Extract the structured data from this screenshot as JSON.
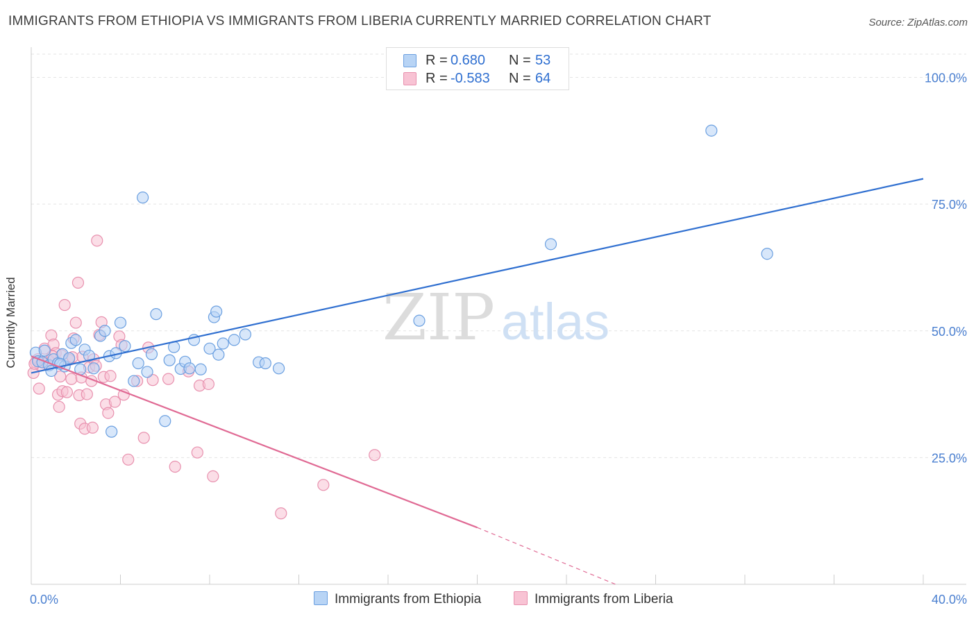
{
  "title": "IMMIGRANTS FROM ETHIOPIA VS IMMIGRANTS FROM LIBERIA CURRENTLY MARRIED CORRELATION CHART",
  "source": "Source: ZipAtlas.com",
  "watermark": {
    "zip": "ZIP",
    "atlas": "atlas"
  },
  "legend": {
    "r_label": "R =",
    "n_label": "N =",
    "ethiopia": {
      "r": "0.680",
      "n": "53"
    },
    "liberia": {
      "r": "-0.583",
      "n": "64"
    }
  },
  "colors": {
    "ethiopia_fill": "#b8d4f5",
    "ethiopia_stroke": "#6a9fe0",
    "ethiopia_line": "#2f6fd0",
    "liberia_fill": "#f8c3d4",
    "liberia_stroke": "#e890ae",
    "liberia_line": "#e06a94",
    "tick_label": "#4a7fd0",
    "grid": "#e3e3e3"
  },
  "chart_data": {
    "type": "scatter",
    "title": "IMMIGRANTS FROM ETHIOPIA VS IMMIGRANTS FROM LIBERIA CURRENTLY MARRIED CORRELATION CHART",
    "xlabel": "",
    "ylabel": "Currently Married",
    "xlim": [
      0,
      40
    ],
    "ylim": [
      0,
      105
    ],
    "x_tick_labels": [
      "0.0%",
      "40.0%"
    ],
    "y_ticks": [
      25,
      50,
      75,
      100
    ],
    "y_tick_labels": [
      "25.0%",
      "50.0%",
      "75.0%",
      "100.0%"
    ],
    "legend_position": "top-center",
    "series": [
      {
        "name": "Immigrants from Ethiopia",
        "r": 0.68,
        "n": 53,
        "trend": {
          "x0": 0,
          "y0": 41.7,
          "x1": 40,
          "y1": 80.0
        },
        "points": [
          [
            0.2,
            45.7
          ],
          [
            0.3,
            44.0
          ],
          [
            0.5,
            43.8
          ],
          [
            0.6,
            46.1
          ],
          [
            0.8,
            43.2
          ],
          [
            0.9,
            42.1
          ],
          [
            1.0,
            44.4
          ],
          [
            1.2,
            43.6
          ],
          [
            1.4,
            45.4
          ],
          [
            1.5,
            43.0
          ],
          [
            1.7,
            44.6
          ],
          [
            1.8,
            47.6
          ],
          [
            2.0,
            48.2
          ],
          [
            2.2,
            42.4
          ],
          [
            2.4,
            46.3
          ],
          [
            2.6,
            45.1
          ],
          [
            2.8,
            42.6
          ],
          [
            3.1,
            49.0
          ],
          [
            3.3,
            50.0
          ],
          [
            3.5,
            45.0
          ],
          [
            3.8,
            45.6
          ],
          [
            4.0,
            51.6
          ],
          [
            4.2,
            47.0
          ],
          [
            4.6,
            40.1
          ],
          [
            4.8,
            43.6
          ],
          [
            5.2,
            41.9
          ],
          [
            5.4,
            45.4
          ],
          [
            5.6,
            53.3
          ],
          [
            6.0,
            32.2
          ],
          [
            6.2,
            44.2
          ],
          [
            6.4,
            46.8
          ],
          [
            6.7,
            42.5
          ],
          [
            6.9,
            43.9
          ],
          [
            7.1,
            42.6
          ],
          [
            7.3,
            48.2
          ],
          [
            7.6,
            42.4
          ],
          [
            8.0,
            46.5
          ],
          [
            8.2,
            52.7
          ],
          [
            8.4,
            45.3
          ],
          [
            8.6,
            47.5
          ],
          [
            9.1,
            48.2
          ],
          [
            9.6,
            49.3
          ],
          [
            10.2,
            43.8
          ],
          [
            10.5,
            43.6
          ],
          [
            11.1,
            42.6
          ],
          [
            3.6,
            30.1
          ],
          [
            5.0,
            76.3
          ],
          [
            8.3,
            53.8
          ],
          [
            17.4,
            52.0
          ],
          [
            23.3,
            67.1
          ],
          [
            30.5,
            89.5
          ],
          [
            33.0,
            65.2
          ],
          [
            1.3,
            43.5
          ]
        ]
      },
      {
        "name": "Immigrants from Liberia",
        "r": -0.583,
        "n": 64,
        "trend": {
          "x0": 0,
          "y0": 45.0,
          "x1": 20.0,
          "y1": 11.2
        },
        "trend_dashed": {
          "x0": 20.0,
          "y0": 11.2,
          "x1": 26.2,
          "y1": 0.0
        },
        "points": [
          [
            0.1,
            41.7
          ],
          [
            0.2,
            43.8
          ],
          [
            0.3,
            44.4
          ],
          [
            0.35,
            38.6
          ],
          [
            0.4,
            43.2
          ],
          [
            0.5,
            43.8
          ],
          [
            0.6,
            46.5
          ],
          [
            0.7,
            43.7
          ],
          [
            0.8,
            44.2
          ],
          [
            0.9,
            49.1
          ],
          [
            1.0,
            47.3
          ],
          [
            1.1,
            45.6
          ],
          [
            1.2,
            37.4
          ],
          [
            1.25,
            35.0
          ],
          [
            1.3,
            41.0
          ],
          [
            1.35,
            45.2
          ],
          [
            1.4,
            38.1
          ],
          [
            1.5,
            55.1
          ],
          [
            1.6,
            37.9
          ],
          [
            1.7,
            44.3
          ],
          [
            1.8,
            40.5
          ],
          [
            1.85,
            44.8
          ],
          [
            1.9,
            48.5
          ],
          [
            2.0,
            51.6
          ],
          [
            2.1,
            59.5
          ],
          [
            2.15,
            37.3
          ],
          [
            2.2,
            31.7
          ],
          [
            2.25,
            40.8
          ],
          [
            2.4,
            30.7
          ],
          [
            2.5,
            37.5
          ],
          [
            2.6,
            42.8
          ],
          [
            2.7,
            40.1
          ],
          [
            2.75,
            30.9
          ],
          [
            2.8,
            44.4
          ],
          [
            2.9,
            43.1
          ],
          [
            2.95,
            67.8
          ],
          [
            3.05,
            49.2
          ],
          [
            3.15,
            51.7
          ],
          [
            3.25,
            40.9
          ],
          [
            3.35,
            35.5
          ],
          [
            3.45,
            33.8
          ],
          [
            3.55,
            41.1
          ],
          [
            3.75,
            36.0
          ],
          [
            3.95,
            48.9
          ],
          [
            4.05,
            47.2
          ],
          [
            4.15,
            37.4
          ],
          [
            4.35,
            24.6
          ],
          [
            4.75,
            40.1
          ],
          [
            5.05,
            28.9
          ],
          [
            5.25,
            46.7
          ],
          [
            5.45,
            40.3
          ],
          [
            6.15,
            40.5
          ],
          [
            6.45,
            23.2
          ],
          [
            7.05,
            42.0
          ],
          [
            7.45,
            26.0
          ],
          [
            7.55,
            39.2
          ],
          [
            7.95,
            39.5
          ],
          [
            8.15,
            21.3
          ],
          [
            11.2,
            14.0
          ],
          [
            13.1,
            19.6
          ],
          [
            15.4,
            25.5
          ],
          [
            0.15,
            43.5
          ],
          [
            0.95,
            45.0
          ],
          [
            2.3,
            44.9
          ]
        ]
      }
    ]
  },
  "bottom_legend": {
    "ethiopia_label": "Immigrants from Ethiopia",
    "liberia_label": "Immigrants from Liberia"
  }
}
